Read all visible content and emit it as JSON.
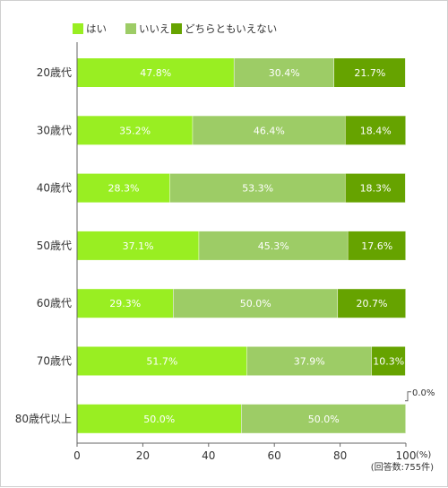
{
  "chart_data": {
    "type": "bar",
    "orientation": "horizontal",
    "stacked": true,
    "categories": [
      "20歳代",
      "30歳代",
      "40歳代",
      "50歳代",
      "60歳代",
      "70歳代",
      "80歳代以上"
    ],
    "series": [
      {
        "name": "はい",
        "color": "#99ee22",
        "values": [
          47.8,
          35.2,
          28.3,
          37.1,
          29.3,
          51.7,
          50.0
        ],
        "labels": [
          "47.8%",
          "35.2%",
          "28.3%",
          "37.1%",
          "29.3%",
          "51.7%",
          "50.0%"
        ]
      },
      {
        "name": "いいえ",
        "color": "#9dcc66",
        "values": [
          30.4,
          46.4,
          53.3,
          45.3,
          50.0,
          37.9,
          50.0
        ],
        "labels": [
          "30.4%",
          "46.4%",
          "53.3%",
          "45.3%",
          "50.0%",
          "37.9%",
          "50.0%"
        ]
      },
      {
        "name": "どちらともいえない",
        "color": "#66a300",
        "values": [
          21.7,
          18.4,
          18.3,
          17.6,
          20.7,
          10.3,
          0.0
        ],
        "labels": [
          "21.7%",
          "18.4%",
          "18.3%",
          "17.6%",
          "20.7%",
          "10.3%",
          "0.0%"
        ]
      }
    ],
    "xlim": [
      0,
      100
    ],
    "x_ticks": [
      "0",
      "20",
      "40",
      "60",
      "80",
      "100"
    ],
    "x_unit": "(%)",
    "note": "(回答数:755件)",
    "legend_position": "top-left",
    "grid": false
  }
}
